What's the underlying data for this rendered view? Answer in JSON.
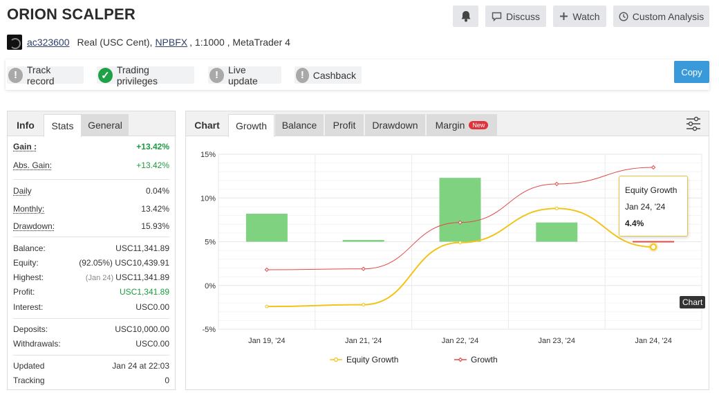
{
  "header": {
    "title": "ORION SCALPER",
    "buttons": {
      "discuss": "Discuss",
      "watch": "Watch",
      "custom": "Custom Analysis"
    }
  },
  "account": {
    "id": "ac323600",
    "type": "Real (USC Cent),",
    "broker": "NPBFX",
    "details": ", 1:1000 , MetaTrader 4"
  },
  "badges": {
    "track": "Track record",
    "privileges": "Trading privileges",
    "live": "Live update",
    "cashback": "Cashback",
    "copy": "Copy"
  },
  "left_tabs": {
    "info": "Info",
    "stats": "Stats",
    "general": "General"
  },
  "stats": {
    "gain_label": "Gain :",
    "gain": "+13.42%",
    "abs_label": "Abs. Gain:",
    "abs": "+13.42%",
    "daily_label": "Daily",
    "daily": "0.04%",
    "monthly_label": "Monthly:",
    "monthly": "13.42%",
    "drawdown_label": "Drawdown:",
    "drawdown": "15.93%",
    "balance_label": "Balance:",
    "balance": "USC11,341.89",
    "equity_label": "Equity:",
    "equity_pct": "(92.05%)",
    "equity": "USC10,439.91",
    "highest_label": "Highest:",
    "highest_date": "(Jan 24)",
    "highest": "USC11,341.89",
    "profit_label": "Profit:",
    "profit": "USC1,341.89",
    "interest_label": "Interest:",
    "interest": "USC0.00",
    "deposits_label": "Deposits:",
    "deposits": "USC10,000.00",
    "withdrawals_label": "Withdrawals:",
    "withdrawals": "USC0.00",
    "updated_label": "Updated",
    "updated": "Jan 24 at 22:03",
    "tracking_label": "Tracking",
    "tracking": "0"
  },
  "right_tabs": {
    "chart": "Chart",
    "growth": "Growth",
    "balance": "Balance",
    "profit": "Profit",
    "drawdown": "Drawdown",
    "margin": "Margin",
    "new": "New"
  },
  "tooltip": {
    "title": "Equity Growth",
    "date": "Jan 24, '24",
    "value": "4.4%"
  },
  "chart_badge": "Chart",
  "colors": {
    "equity": "#f2c318",
    "growth": "#e04848",
    "bar": "#7fd27f",
    "copy": "#3a9ad9"
  },
  "chart_data": {
    "type": "line",
    "categories": [
      "Jan 19, '24",
      "Jan 21, '24",
      "Jan 22, '24",
      "Jan 23, '24",
      "Jan 24, '24"
    ],
    "ylim": [
      -5,
      15
    ],
    "yticks": [
      "15%",
      "10%",
      "5%",
      "0%",
      "-5%"
    ],
    "series": [
      {
        "name": "Equity Growth",
        "values": [
          -2.4,
          -2.2,
          4.9,
          8.8,
          4.4
        ]
      },
      {
        "name": "Growth",
        "values": [
          1.8,
          1.9,
          7.2,
          11.6,
          13.5
        ]
      }
    ],
    "bars": [
      8.2,
      5.2,
      12.3,
      7.2,
      5.0
    ],
    "bar_base": 5
  }
}
